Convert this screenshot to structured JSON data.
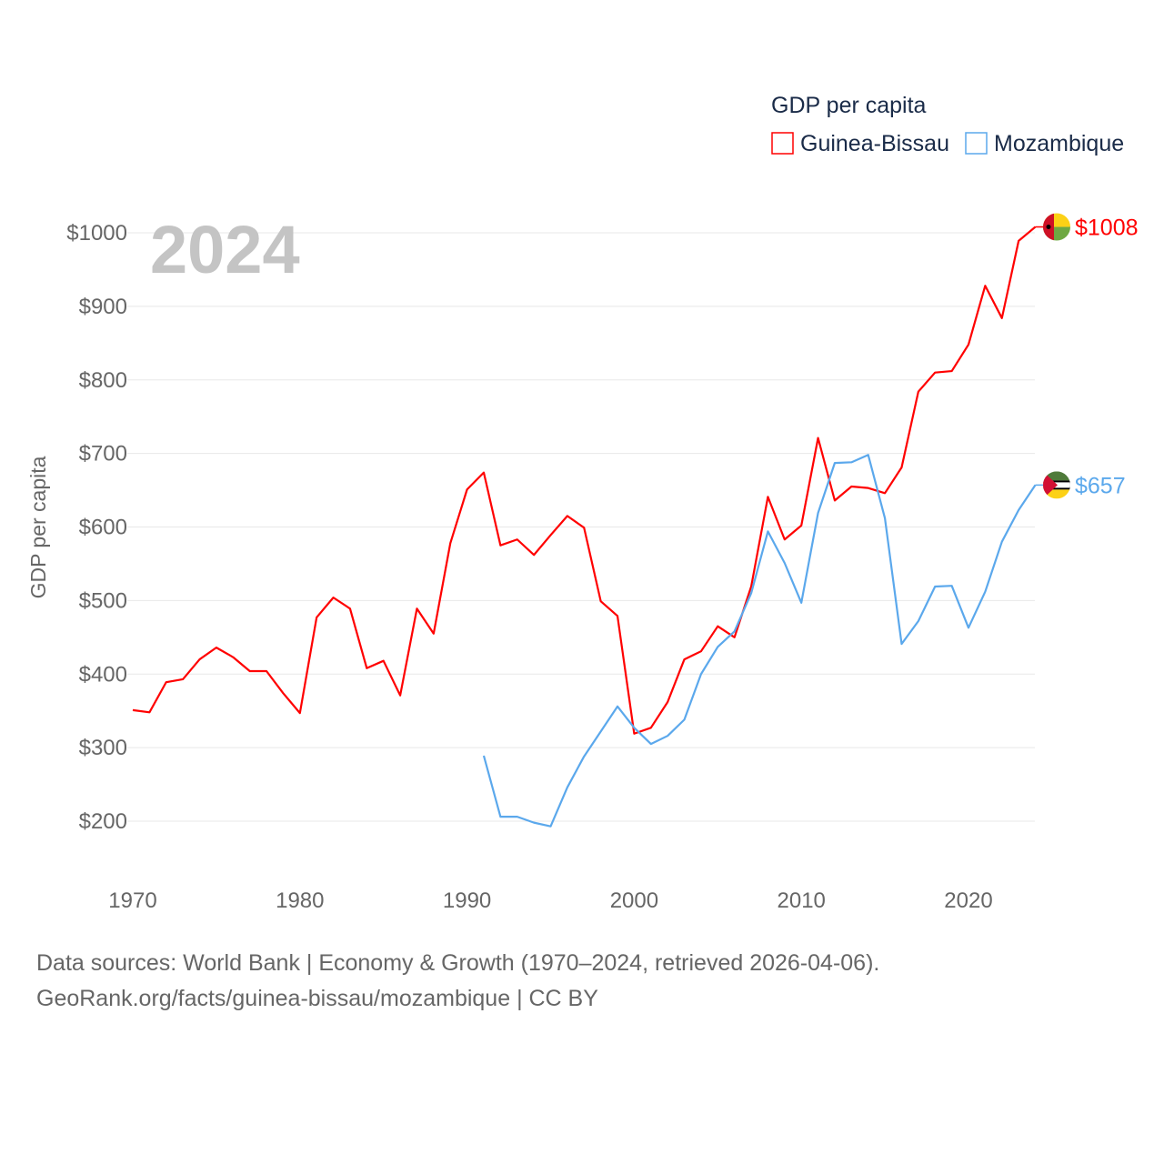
{
  "chart_data": {
    "type": "line",
    "title": "GDP per capita",
    "ylabel": "GDP per capita",
    "xlabel": "",
    "year_label": "2024",
    "ylim": [
      130,
      1000
    ],
    "xlim": [
      1970,
      2024
    ],
    "y_ticks": [
      200,
      300,
      400,
      500,
      600,
      700,
      800,
      900,
      1000
    ],
    "y_tick_labels": [
      "$200",
      "$300",
      "$400",
      "$500",
      "$600",
      "$700",
      "$800",
      "$900",
      "$1000"
    ],
    "x_ticks": [
      1970,
      1980,
      1990,
      2000,
      2010,
      2020
    ],
    "x_tick_labels": [
      "1970",
      "1980",
      "1990",
      "2000",
      "2010",
      "2020"
    ],
    "grid": true,
    "legend_position": "top-right",
    "series": [
      {
        "name": "Guinea-Bissau",
        "color": "#ff0000",
        "end_label": "$1008",
        "flag": "guinea-bissau-flag",
        "start_year": 1970,
        "values": [
          351,
          348,
          389,
          393,
          420,
          436,
          423,
          404,
          404,
          374,
          347,
          477,
          504,
          489,
          408,
          418,
          371,
          489,
          455,
          578,
          651,
          674,
          575,
          583,
          562,
          589,
          615,
          599,
          499,
          479,
          319,
          327,
          362,
          420,
          431,
          465,
          450,
          519,
          641,
          583,
          602,
          721,
          636,
          655,
          653,
          646,
          681,
          784,
          810,
          812,
          848,
          928,
          884,
          989,
          1008
        ]
      },
      {
        "name": "Mozambique",
        "color": "#5ba8ec",
        "end_label": "$657",
        "flag": "mozambique-flag",
        "start_year": 1991,
        "values": [
          289,
          206,
          206,
          198,
          193,
          246,
          288,
          322,
          356,
          327,
          305,
          316,
          338,
          400,
          437,
          458,
          510,
          594,
          551,
          497,
          619,
          687,
          688,
          698,
          612,
          441,
          472,
          519,
          520,
          463,
          512,
          580,
          623,
          657
        ]
      }
    ]
  },
  "footer": {
    "line1": "Data sources: World Bank | Economy & Growth (1970–2024, retrieved 2026-04-06).",
    "line2": "GeoRank.org/facts/guinea-bissau/mozambique | CC BY"
  }
}
